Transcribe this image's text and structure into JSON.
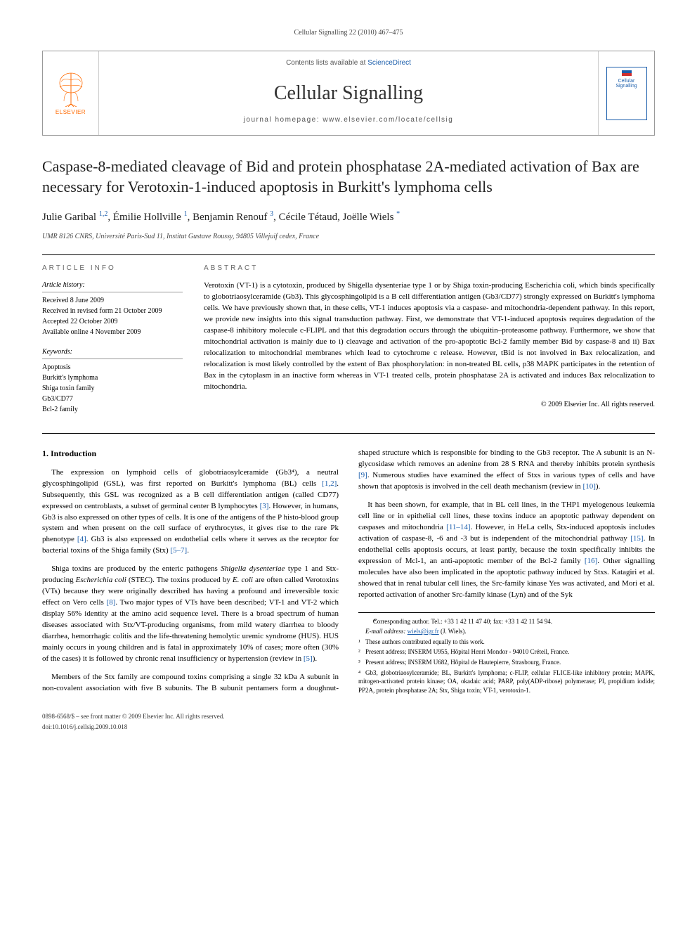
{
  "running_header": "Cellular Signalling 22 (2010) 467–475",
  "masthead": {
    "contents_prefix": "Contents lists available at ",
    "contents_link": "ScienceDirect",
    "journal": "Cellular Signalling",
    "homepage_prefix": "journal homepage: ",
    "homepage_url": "www.elsevier.com/locate/cellsig",
    "publisher_label": "ELSEVIER",
    "cover_label": "Cellular Signalling"
  },
  "title": "Caspase-8-mediated cleavage of Bid and protein phosphatase 2A-mediated activation of Bax are necessary for Verotoxin-1-induced apoptosis in Burkitt's lymphoma cells",
  "authors": [
    {
      "name": "Julie Garibal",
      "marks": "1,2"
    },
    {
      "name": "Émilie Hollville",
      "marks": "1"
    },
    {
      "name": "Benjamin Renouf",
      "marks": "3"
    },
    {
      "name": "Cécile Tétaud",
      "marks": ""
    },
    {
      "name": "Joëlle Wiels",
      "marks": "*",
      "corresponding": true
    }
  ],
  "affiliation": "UMR 8126 CNRS, Université Paris-Sud 11, Institut Gustave Roussy, 94805 Villejuif cedex, France",
  "info": {
    "section_label": "ARTICLE INFO",
    "history_hd": "Article history:",
    "history": [
      "Received 8 June 2009",
      "Received in revised form 21 October 2009",
      "Accepted 22 October 2009",
      "Available online 4 November 2009"
    ],
    "keywords_hd": "Keywords:",
    "keywords": [
      "Apoptosis",
      "Burkitt's lymphoma",
      "Shiga toxin family",
      "Gb3/CD77",
      "Bcl-2 family"
    ]
  },
  "abstract": {
    "section_label": "ABSTRACT",
    "text": "Verotoxin (VT-1) is a cytotoxin, produced by Shigella dysenteriae type 1 or by Shiga toxin-producing Escherichia coli, which binds specifically to globotriaosylceramide (Gb3). This glycosphingolipid is a B cell differentiation antigen (Gb3/CD77) strongly expressed on Burkitt's lymphoma cells. We have previously shown that, in these cells, VT-1 induces apoptosis via a caspase- and mitochondria-dependent pathway. In this report, we provide new insights into this signal transduction pathway. First, we demonstrate that VT-1-induced apoptosis requires degradation of the caspase-8 inhibitory molecule c-FLIPL and that this degradation occurs through the ubiquitin–proteasome pathway. Furthermore, we show that mitochondrial activation is mainly due to i) cleavage and activation of the pro-apoptotic Bcl-2 family member Bid by caspase-8 and ii) Bax relocalization to mitochondrial membranes which lead to cytochrome c release. However, tBid is not involved in Bax relocalization, and relocalization is most likely controlled by the extent of Bax phosphorylation: in non-treated BL cells, p38 MAPK participates in the retention of Bax in the cytoplasm in an inactive form whereas in VT-1 treated cells, protein phosphatase 2A is activated and induces Bax relocalization to mitochondria.",
    "copyright": "© 2009 Elsevier Inc. All rights reserved."
  },
  "intro_heading": "1. Introduction",
  "intro_paragraphs": [
    "The expression on lymphoid cells of globotriaosylceramide (Gb3⁴), a neutral glycosphingolipid (GSL), was first reported on Burkitt's lymphoma (BL) cells [1,2]. Subsequently, this GSL was recognized as a B cell differentiation antigen (called CD77) expressed on centroblasts, a subset of germinal center B lymphocytes [3]. However, in humans, Gb3 is also expressed on other types of cells. It is one of the antigens of the P histo-blood group system and when present on the cell surface of erythrocytes, it gives rise to the rare Pk phenotype [4]. Gb3 is also expressed on endothelial cells where it serves as the receptor for bacterial toxins of the Shiga family (Stx) [5–7].",
    "Shiga toxins are produced by the enteric pathogens Shigella dysenteriae type 1 and Stx-producing Escherichia coli (STEC). The toxins produced by E. coli are often called Verotoxins (VTs) because they were originally described has having a profound and irreversible toxic effect on Vero cells [8]. Two major types of VTs have been described; VT-1 and VT-2 which display 56% identity at the amino acid sequence level. There is a broad spectrum of human diseases associated with Stx/VT-producing organisms, from mild watery diarrhea to bloody diarrhea, hemorrhagic colitis and the life-threatening hemolytic uremic syndrome (HUS). HUS mainly occurs in young children and is fatal in approximately 10% of cases; more often (30% of the cases) it is followed by chronic renal insufficiency or hypertension (review in [5]).",
    "Members of the Stx family are compound toxins comprising a single 32 kDa A subunit in non-covalent association with five B subunits. The B subunit pentamers form a doughnut-shaped structure which is responsible for binding to the Gb3 receptor. The A subunit is an N-glycosidase which removes an adenine from 28 S RNA and thereby inhibits protein synthesis [9]. Numerous studies have examined the effect of Stxs in various types of cells and have shown that apoptosis is involved in the cell death mechanism (review in [10]).",
    "It has been shown, for example, that in BL cell lines, in the THP1 myelogenous leukemia cell line or in epithelial cell lines, these toxins induce an apoptotic pathway dependent on caspases and mitochondria [11–14]. However, in HeLa cells, Stx-induced apoptosis includes activation of caspase-8, -6 and -3 but is independent of the mitochondrial pathway [15]. In endothelial cells apoptosis occurs, at least partly, because the toxin specifically inhibits the expression of Mcl-1, an anti-apoptotic member of the Bcl-2 family [16]. Other signalling molecules have also been implicated in the apoptotic pathway induced by Stxs. Katagiri et al. showed that in renal tubular cell lines, the Src-family kinase Yes was activated, and Mori et al. reported activation of another Src-family kinase (Lyn) and of the Syk"
  ],
  "footnotes": {
    "corr": "Corresponding author. Tel.: +33 1 42 11 47 40; fax: +33 1 42 11 54 94.",
    "email_label": "E-mail address:",
    "email": "wiels@igr.fr",
    "email_name": "(J. Wiels).",
    "n1": "These authors contributed equally to this work.",
    "n2": "Present address; INSERM U955, Hôpital Henri Mondor - 94010 Créteil, France.",
    "n3": "Present address; INSERM U682, Hôpital de Hautepierre, Strasbourg, France.",
    "n4": "Gb3, globotriaosylceramide; BL, Burkitt's lymphoma; c-FLIP, cellular FLICE-like inhibitory protein; MAPK, mitogen-activated protein kinase; OA, okadaic acid; PARP, poly(ADP-ribose) polymerase; PI, propidium iodide; PP2A, protein phosphatase 2A; Stx, Shiga toxin; VT-1, verotoxin-1."
  },
  "bottom": {
    "issn_line": "0898-6568/$ – see front matter © 2009 Elsevier Inc. All rights reserved.",
    "doi_line": "doi:10.1016/j.cellsig.2009.10.018"
  },
  "colors": {
    "link": "#1a5dab",
    "elsevier_orange": "#ff6a00",
    "rule": "#000000",
    "border": "#999999"
  }
}
